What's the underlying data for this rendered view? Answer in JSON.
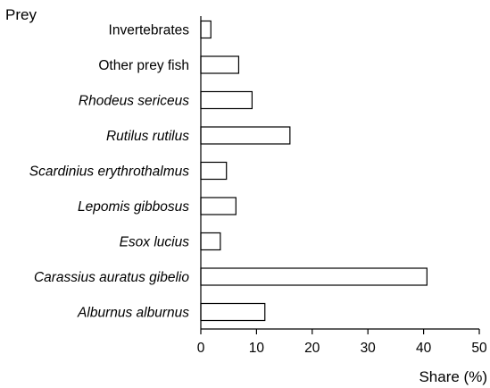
{
  "chart_data": {
    "type": "bar",
    "orientation": "horizontal",
    "title": "",
    "ylabel": "Prey",
    "xlabel": "Share (%)",
    "xlim": [
      0,
      50
    ],
    "xticks": [
      0,
      10,
      20,
      30,
      40,
      50
    ],
    "grid": false,
    "categories": [
      "Invertebrates",
      "Other prey fish",
      "Rhodeus sericeus",
      "Rutilus rutilus",
      "Scardinius erythrothalmus",
      "Lepomis gibbosus",
      "Esox lucius",
      "Carassius auratus gibelio",
      "Alburnus alburnus"
    ],
    "italic": [
      false,
      false,
      true,
      true,
      true,
      true,
      true,
      true,
      true
    ],
    "values": [
      1.8,
      6.8,
      9.2,
      16.0,
      4.6,
      6.3,
      3.5,
      40.6,
      11.5
    ],
    "bar_fill": "#ffffff",
    "bar_stroke": "#000000"
  }
}
